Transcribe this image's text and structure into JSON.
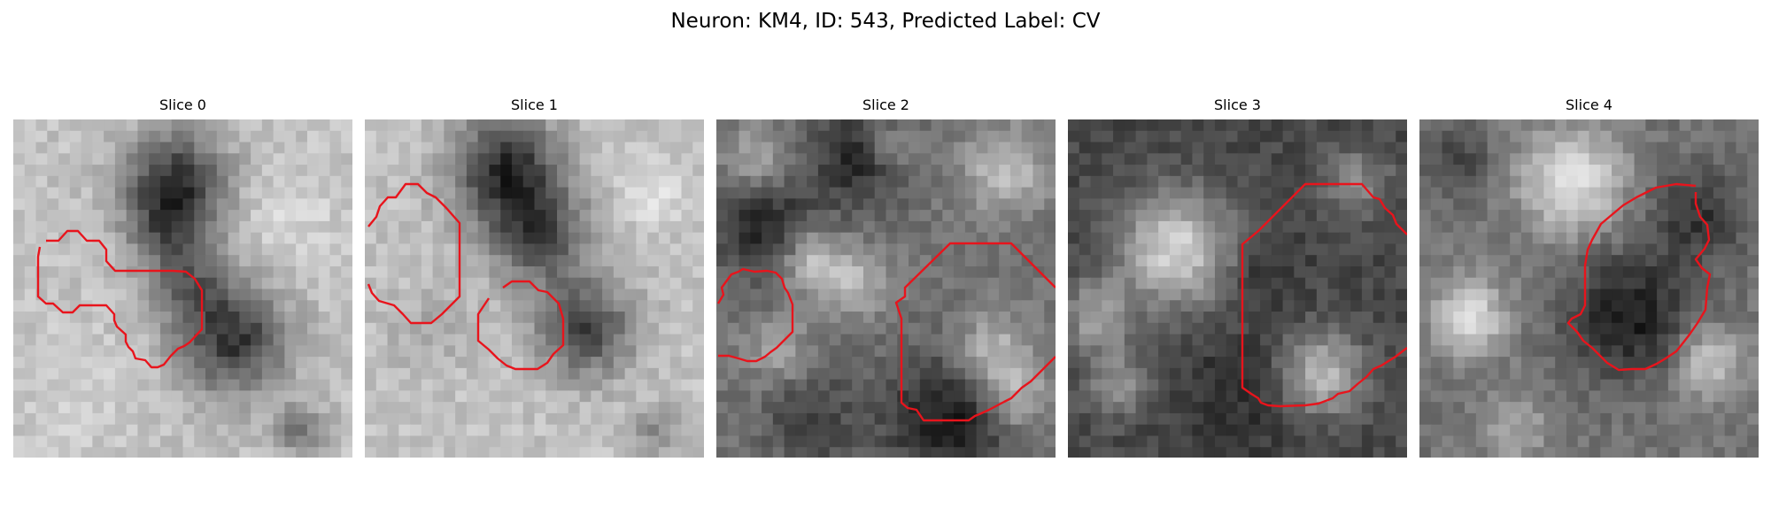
{
  "figure": {
    "title": "Neuron: KM4, ID: 543, Predicted Label: CV"
  },
  "panels": [
    {
      "title": "Slice 0"
    },
    {
      "title": "Slice 1"
    },
    {
      "title": "Slice 2"
    },
    {
      "title": "Slice 3"
    },
    {
      "title": "Slice 4"
    }
  ],
  "colors": {
    "contour": "#e8141c",
    "background": "#ffffff",
    "colormap": "gray"
  }
}
